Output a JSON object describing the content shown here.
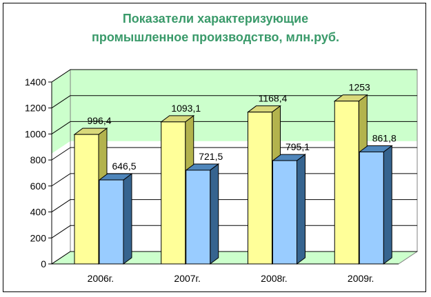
{
  "chart_data": {
    "type": "bar",
    "title": [
      "Показатели характеризующие",
      "промышленное производство, млн.руб."
    ],
    "categories": [
      "2006г.",
      "2007г.",
      "2008г.",
      "2009г."
    ],
    "series": [
      {
        "values": [
          996.4,
          1093.1,
          1168.4,
          1253
        ],
        "labels": [
          "996,4",
          "1093,1",
          "1168,4",
          "1253"
        ]
      },
      {
        "values": [
          646.5,
          721.5,
          795.1,
          861.8
        ],
        "labels": [
          "646,5",
          "721,5",
          "795,1",
          "861,8"
        ]
      }
    ],
    "ylim": [
      0,
      1400
    ],
    "yticks": [
      "0",
      "200",
      "400",
      "600",
      "800",
      "1000",
      "1200",
      "1400"
    ],
    "grid": true,
    "three_d": true,
    "legend": "none",
    "colors": {
      "title": "#3a9a6a",
      "series1_front": "#ffff99",
      "series1_side": "#b3b34d",
      "series1_top": "#d9d97a",
      "series2_front": "#99ccff",
      "series2_side": "#36648f",
      "series2_top": "#4f86bb",
      "wall_band": "#ccffcc",
      "floor": "#ccffcc",
      "gridline": "#000000"
    }
  }
}
